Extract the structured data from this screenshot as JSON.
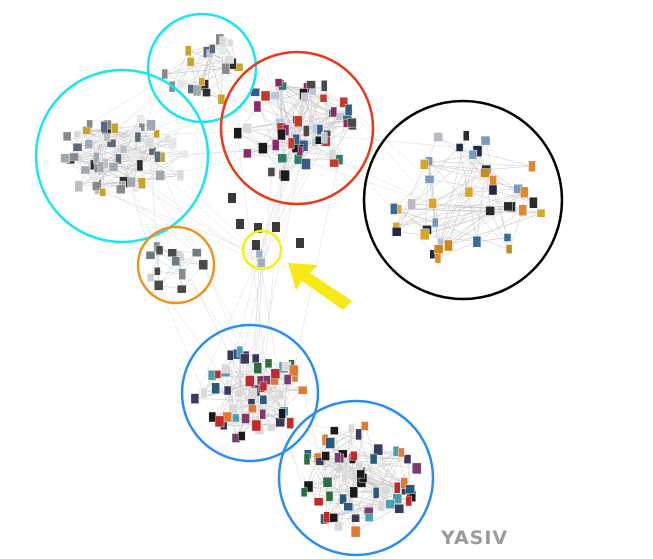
{
  "watermark": "YASIV",
  "colors": {
    "cyan": "#19e6f0",
    "red": "#e8391a",
    "black": "#000000",
    "orange": "#f2921e",
    "yellow": "#f5ef1a",
    "blue": "#2a8ef0",
    "arrow": "#f5ea16",
    "edge": "#c8c8c8"
  },
  "clusters": [
    {
      "id": "cyan-top",
      "color": "cyan",
      "nodes": 22
    },
    {
      "id": "cyan-left",
      "color": "cyan",
      "nodes": 55
    },
    {
      "id": "red",
      "color": "red",
      "nodes": 60
    },
    {
      "id": "black",
      "color": "black",
      "nodes": 40
    },
    {
      "id": "orange",
      "color": "orange",
      "nodes": 14
    },
    {
      "id": "yellow",
      "color": "yellow",
      "nodes": 2
    },
    {
      "id": "blue-upper",
      "color": "blue",
      "nodes": 55
    },
    {
      "id": "blue-lower",
      "color": "blue",
      "nodes": 55
    }
  ],
  "arrow": {
    "icon": "arrow-icon",
    "color": "arrow"
  }
}
